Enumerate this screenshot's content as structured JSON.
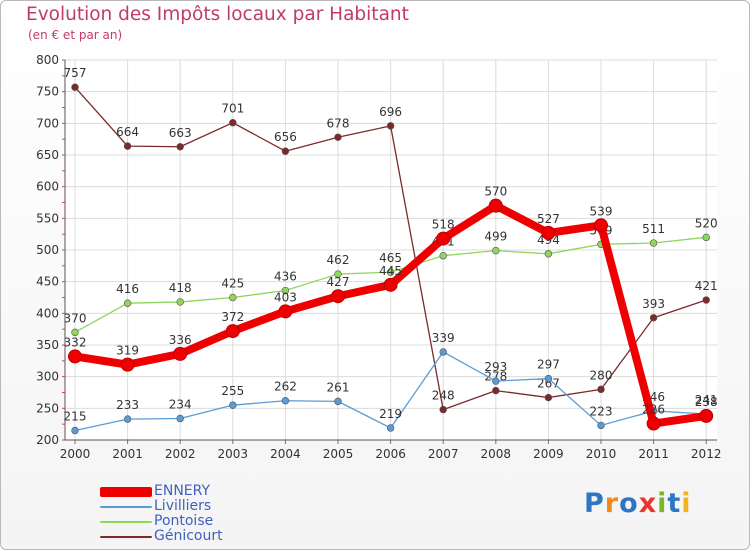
{
  "chart_data": {
    "type": "line",
    "title": "Evolution des Impôts locaux par Habitant",
    "subtitle": "(en € et par an)",
    "categories": [
      "2000",
      "2001",
      "2002",
      "2003",
      "2004",
      "2005",
      "2006",
      "2007",
      "2008",
      "2009",
      "2010",
      "2011",
      "2012"
    ],
    "ylim": [
      200,
      800
    ],
    "yticks": [
      200,
      250,
      300,
      350,
      400,
      450,
      500,
      550,
      600,
      650,
      700,
      750,
      800
    ],
    "grid": true,
    "series": [
      {
        "name": "Génicourt",
        "color": "#7b2a2a",
        "values": [
          757,
          664,
          663,
          701,
          656,
          678,
          696,
          248,
          278,
          267,
          280,
          393,
          421
        ],
        "labels": [
          "757",
          "664",
          "663",
          "701",
          "656",
          "678",
          "696",
          "248",
          "278",
          "267",
          "280",
          "393",
          "421"
        ]
      },
      {
        "name": "Pontoise",
        "color": "#8fd65c",
        "values": [
          370,
          416,
          418,
          425,
          436,
          462,
          465,
          491,
          499,
          494,
          509,
          511,
          520
        ],
        "labels": [
          "370",
          "416",
          "418",
          "425",
          "436",
          "462",
          "465",
          "491",
          "499",
          "494",
          "509",
          "511",
          "520"
        ]
      },
      {
        "name": "Livilliers",
        "color": "#5b9bd5",
        "values": [
          215,
          233,
          234,
          255,
          262,
          261,
          219,
          339,
          293,
          297,
          223,
          246,
          241
        ],
        "labels": [
          "215",
          "233",
          "234",
          "255",
          "262",
          "261",
          "219",
          "339",
          "293",
          "297",
          "223",
          "246",
          "241"
        ]
      },
      {
        "name": "ENNERY",
        "color": "#ee0000",
        "values": [
          332,
          319,
          336,
          372,
          403,
          427,
          445,
          518,
          570,
          527,
          539,
          226,
          238
        ],
        "labels": [
          "332",
          "319",
          "336",
          "372",
          "403",
          "427",
          "445",
          "518",
          "570",
          "527",
          "539",
          "226",
          "238"
        ]
      }
    ],
    "legend": [
      {
        "name": "ENNERY",
        "color": "#ee0000",
        "thick": true
      },
      {
        "name": "Livilliers",
        "color": "#5b9bd5",
        "thick": false
      },
      {
        "name": "Pontoise",
        "color": "#8fd65c",
        "thick": false
      },
      {
        "name": "Génicourt",
        "color": "#7b2a2a",
        "thick": false
      }
    ]
  },
  "logo": {
    "letters": [
      "P",
      "r",
      "o",
      "x",
      "i",
      "t",
      "i"
    ],
    "colors": [
      "#2e75c4",
      "#f28a1d",
      "#2e75c4",
      "#e8362c",
      "#79b829",
      "#2e75c4",
      "#f2b21d"
    ]
  }
}
